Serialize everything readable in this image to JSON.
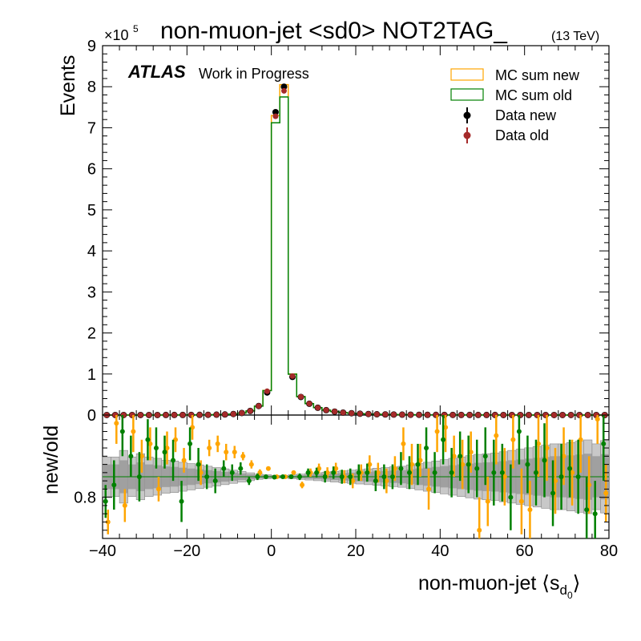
{
  "chart_data": [
    {
      "type": "histogram",
      "title": "non-muon-jet <sd0> NOT2TAG_",
      "title_suffix": "(13 TeV)",
      "xlim": [
        -40,
        80
      ],
      "ylim": [
        0,
        900000
      ],
      "ylabel": "Events",
      "y_multiplier": "×10",
      "y_multiplier_exp": "5",
      "x_ticks": [
        "−40",
        "−20",
        "0",
        "20",
        "40",
        "60",
        "80"
      ],
      "y_ticks": [
        "0",
        "1",
        "2",
        "3",
        "4",
        "5",
        "6",
        "7",
        "8",
        "9"
      ],
      "atlas_label": "ATLAS",
      "atlas_sublabel": "Work in Progress",
      "legend_position": "top-right",
      "legend": [
        "MC sum new",
        "MC sum old",
        "Data new",
        "Data old"
      ],
      "colors": {
        "mc_new": "#ffa500",
        "mc_old": "#008000",
        "data_new": "#000000",
        "data_old": "#a52a2a"
      },
      "bin_width": 2,
      "bin_start": -40,
      "mc_new": [
        50,
        50,
        60,
        70,
        80,
        100,
        120,
        150,
        180,
        220,
        300,
        400,
        600,
        900,
        1400,
        2500,
        5000,
        10000,
        22000,
        60000,
        730000,
        805000,
        100000,
        45000,
        28000,
        18000,
        12000,
        8500,
        6000,
        4500,
        3300,
        2500,
        1900,
        1500,
        1200,
        950,
        750,
        600,
        500,
        420,
        350,
        300,
        260,
        220,
        190,
        160,
        140,
        120,
        100,
        90,
        80,
        70,
        60,
        55,
        50,
        45,
        40,
        35,
        30,
        28
      ],
      "mc_old": [
        48,
        48,
        58,
        68,
        78,
        97,
        117,
        147,
        178,
        218,
        297,
        397,
        595,
        895,
        1390,
        2480,
        4960,
        9920,
        21800,
        59500,
        712000,
        775000,
        99500,
        44800,
        27900,
        17950,
        11970,
        8480,
        5990,
        4490,
        3295,
        2497,
        1898,
        1499,
        1199,
        949,
        749,
        599,
        499,
        419,
        349,
        299,
        259,
        219,
        189,
        159,
        139,
        119,
        99,
        89,
        79,
        69,
        59,
        54,
        49,
        44,
        39,
        34,
        29,
        27
      ],
      "data_new": [
        50,
        52,
        60,
        70,
        80,
        100,
        120,
        150,
        180,
        220,
        300,
        400,
        600,
        900,
        1400,
        2500,
        5000,
        10000,
        22000,
        55000,
        738000,
        800000,
        93000,
        44000,
        27500,
        17800,
        11900,
        8400,
        5900,
        4450,
        3250,
        2480,
        1880,
        1490,
        1190,
        940,
        745,
        598,
        498,
        418,
        348,
        298,
        258,
        218,
        188,
        158,
        138,
        118,
        98,
        88,
        78,
        68,
        58,
        53,
        48,
        43,
        38,
        33,
        28,
        26
      ],
      "data_old": [
        50,
        51,
        60,
        70,
        80,
        100,
        120,
        150,
        180,
        220,
        300,
        400,
        600,
        900,
        1400,
        2500,
        5000,
        10000,
        22000,
        58000,
        728000,
        790000,
        95000,
        44500,
        27700,
        17900,
        11950,
        8450,
        5950,
        4470,
        3270,
        2490,
        1890,
        1495,
        1195,
        945,
        748,
        599,
        499,
        419,
        349,
        299,
        259,
        219,
        189,
        159,
        139,
        119,
        99,
        89,
        79,
        69,
        59,
        54,
        49,
        44,
        39,
        34,
        29,
        27
      ]
    },
    {
      "type": "ratio",
      "ylabel": "new/old",
      "y_ticks": [
        "0.8"
      ],
      "ylim": [
        0.7,
        1.0
      ],
      "xlabel": "non-muon-jet ⟨s",
      "xlabel_sub": "d",
      "xlabel_subsub": "0",
      "xlabel_end": "⟩",
      "x_ticks": [
        "−40",
        "−20",
        "0",
        "20",
        "40",
        "60",
        "80"
      ],
      "band_half_width": [
        0.03,
        0.03,
        0.04,
        0.03,
        0.035,
        0.03,
        0.028,
        0.025,
        0.024,
        0.022,
        0.02,
        0.018,
        0.016,
        0.014,
        0.012,
        0.01,
        0.008,
        0.006,
        0.004,
        0.003,
        0.002,
        0.002,
        0.003,
        0.004,
        0.005,
        0.006,
        0.007,
        0.008,
        0.009,
        0.01,
        0.011,
        0.012,
        0.013,
        0.014,
        0.015,
        0.016,
        0.018,
        0.02,
        0.022,
        0.024,
        0.026,
        0.028,
        0.03,
        0.032,
        0.034,
        0.035,
        0.036,
        0.038,
        0.04,
        0.042,
        0.044,
        0.046,
        0.048,
        0.05,
        0.05,
        0.052,
        0.054,
        0.056,
        0.05,
        0.055
      ],
      "ratio_mc": [
        0.74,
        0.98,
        0.78,
        0.96,
        0.9,
        0.93,
        0.82,
        0.92,
        0.94,
        0.89,
        0.97,
        0.86,
        0.92,
        0.93,
        0.91,
        0.91,
        0.9,
        0.88,
        0.86,
        0.87,
        0.85,
        0.85,
        0.86,
        0.83,
        0.86,
        0.87,
        0.86,
        0.87,
        0.85,
        0.84,
        0.86,
        0.88,
        0.86,
        0.84,
        0.87,
        0.93,
        0.88,
        0.89,
        0.82,
        0.96,
        0.97,
        0.9,
        0.88,
        0.91,
        0.72,
        0.79,
        0.95,
        0.85,
        0.94,
        0.79,
        0.77,
        0.93,
        0.92,
        0.84,
        0.9,
        0.86,
        0.94,
        0.83,
        0.99,
        0.81
      ],
      "ratio_mc_err": [
        0.03,
        0.05,
        0.04,
        0.05,
        0.04,
        0.04,
        0.03,
        0.04,
        0.03,
        0.03,
        0.03,
        0.03,
        0.02,
        0.02,
        0.02,
        0.015,
        0.01,
        0.01,
        0.008,
        0.005,
        0.002,
        0.002,
        0.005,
        0.008,
        0.01,
        0.012,
        0.013,
        0.014,
        0.016,
        0.018,
        0.02,
        0.022,
        0.024,
        0.03,
        0.03,
        0.04,
        0.05,
        0.04,
        0.05,
        0.05,
        0.06,
        0.05,
        0.06,
        0.05,
        0.08,
        0.06,
        0.07,
        0.07,
        0.07,
        0.08,
        0.07,
        0.08,
        0.08,
        0.08,
        0.07,
        0.08,
        0.08,
        0.07,
        0.06,
        0.07
      ],
      "ratio_data": [
        0.79,
        0.83,
        0.96,
        0.9,
        0.85,
        0.94,
        0.92,
        0.91,
        0.89,
        0.79,
        0.93,
        0.88,
        0.85,
        0.84,
        0.87,
        0.86,
        0.87,
        0.84,
        0.85,
        0.85,
        0.849,
        0.85,
        0.85,
        0.85,
        0.86,
        0.86,
        0.85,
        0.86,
        0.85,
        0.85,
        0.86,
        0.86,
        0.84,
        0.85,
        0.85,
        0.87,
        0.86,
        0.88,
        0.92,
        0.86,
        0.94,
        0.86,
        0.9,
        0.88,
        0.87,
        0.9,
        0.86,
        0.86,
        0.8,
        0.96,
        0.88,
        0.86,
        0.89,
        0.81,
        0.85,
        0.87,
        0.85,
        0.77,
        0.76,
        0.93
      ],
      "ratio_data_err": [
        0.04,
        0.06,
        0.06,
        0.05,
        0.06,
        0.05,
        0.05,
        0.04,
        0.05,
        0.05,
        0.04,
        0.04,
        0.03,
        0.03,
        0.02,
        0.02,
        0.015,
        0.01,
        0.008,
        0.005,
        0.002,
        0.002,
        0.005,
        0.008,
        0.01,
        0.012,
        0.014,
        0.015,
        0.017,
        0.02,
        0.02,
        0.022,
        0.025,
        0.03,
        0.03,
        0.04,
        0.04,
        0.05,
        0.05,
        0.05,
        0.06,
        0.06,
        0.06,
        0.07,
        0.07,
        0.07,
        0.08,
        0.07,
        0.08,
        0.08,
        0.07,
        0.08,
        0.09,
        0.08,
        0.08,
        0.07,
        0.09,
        0.08,
        0.08,
        0.09
      ],
      "colors": {
        "band": "#a0a0a0",
        "band_outer": "#c8c8c8",
        "ratio_mc": "#ffa500",
        "ratio_data": "#008000",
        "line": "#008000"
      }
    }
  ]
}
